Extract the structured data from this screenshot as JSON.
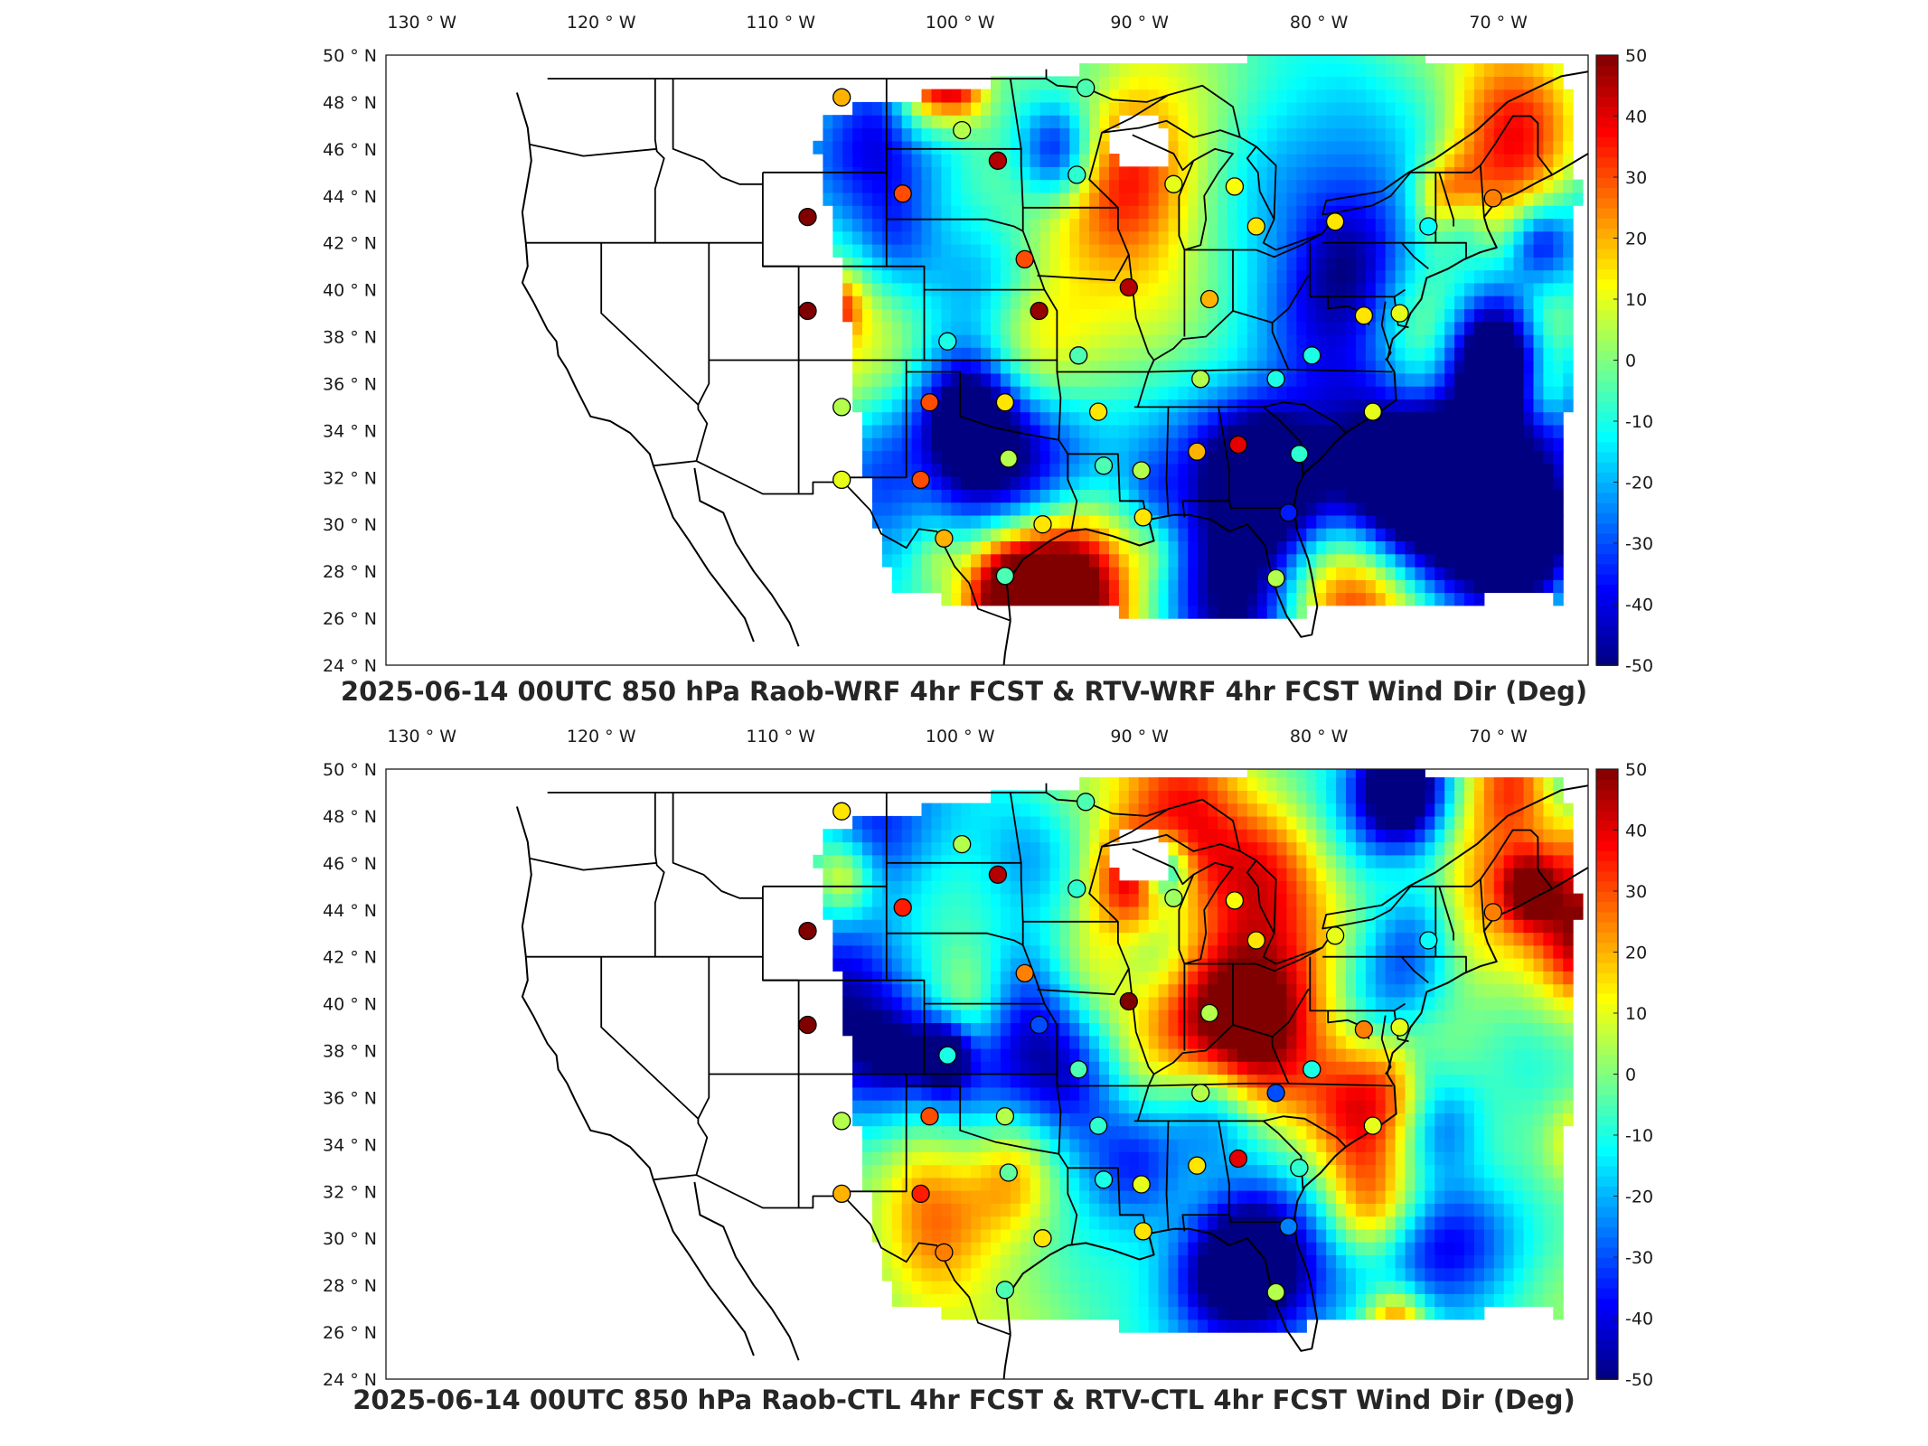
{
  "panels": [
    {
      "title": "2025-06-14 00UTC 850 hPa Raob-WRF 4hr FCST & RTV-WRF 4hr FCST Wind Dir (Deg)",
      "variant": 0
    },
    {
      "title": "2025-06-14 00UTC 850 hPa Raob-CTL 4hr FCST & RTV-CTL 4hr FCST Wind Dir (Deg)",
      "variant": 1
    }
  ],
  "longitude_ticks": [
    {
      "value": -130,
      "label": "130"
    },
    {
      "value": -120,
      "label": "120"
    },
    {
      "value": -110,
      "label": "110"
    },
    {
      "value": -100,
      "label": "100"
    },
    {
      "value": -90,
      "label": "90"
    },
    {
      "value": -80,
      "label": "80"
    },
    {
      "value": -70,
      "label": "70"
    }
  ],
  "longitude_hemisphere": "W",
  "latitude_ticks": [
    {
      "value": 50,
      "label": "50"
    },
    {
      "value": 48,
      "label": "48"
    },
    {
      "value": 46,
      "label": "46"
    },
    {
      "value": 44,
      "label": "44"
    },
    {
      "value": 42,
      "label": "42"
    },
    {
      "value": 40,
      "label": "40"
    },
    {
      "value": 38,
      "label": "38"
    },
    {
      "value": 36,
      "label": "36"
    },
    {
      "value": 34,
      "label": "34"
    },
    {
      "value": 32,
      "label": "32"
    },
    {
      "value": 30,
      "label": "30"
    },
    {
      "value": 28,
      "label": "28"
    },
    {
      "value": 26,
      "label": "26"
    },
    {
      "value": 24,
      "label": "24"
    }
  ],
  "latitude_hemisphere": "N",
  "degree_symbol": "°",
  "colorbar": {
    "min": -50,
    "max": 50,
    "ticks": [
      "50",
      "40",
      "30",
      "20",
      "10",
      "0",
      "-10",
      "-20",
      "-30",
      "-40",
      "-50"
    ],
    "colormap": "jet"
  },
  "map_extent": {
    "lon_min": -132,
    "lon_max": -65,
    "lat_min": 24,
    "lat_max": 50
  },
  "raob_stations": [
    {
      "lon": -106.6,
      "lat": 48.2,
      "v": [
        20,
        15
      ]
    },
    {
      "lon": -99.9,
      "lat": 46.8,
      "v": [
        5,
        5
      ]
    },
    {
      "lon": -97.9,
      "lat": 45.5,
      "v": [
        45,
        45
      ]
    },
    {
      "lon": -103.2,
      "lat": 44.1,
      "v": [
        30,
        35
      ]
    },
    {
      "lon": -108.5,
      "lat": 43.1,
      "v": [
        50,
        50
      ]
    },
    {
      "lon": -108.5,
      "lat": 39.1,
      "v": [
        50,
        50
      ]
    },
    {
      "lon": -93.5,
      "lat": 44.9,
      "v": [
        -8,
        -8
      ]
    },
    {
      "lon": -88.1,
      "lat": 44.5,
      "v": [
        10,
        3
      ]
    },
    {
      "lon": -84.7,
      "lat": 44.4,
      "v": [
        12,
        12
      ]
    },
    {
      "lon": -83.5,
      "lat": 42.7,
      "v": [
        15,
        15
      ]
    },
    {
      "lon": -79.1,
      "lat": 42.9,
      "v": [
        15,
        10
      ]
    },
    {
      "lon": -73.9,
      "lat": 42.7,
      "v": [
        -12,
        -12
      ]
    },
    {
      "lon": -70.3,
      "lat": 43.9,
      "v": [
        25,
        25
      ]
    },
    {
      "lon": -96.4,
      "lat": 41.3,
      "v": [
        30,
        25
      ]
    },
    {
      "lon": -90.6,
      "lat": 40.1,
      "v": [
        45,
        50
      ]
    },
    {
      "lon": -95.6,
      "lat": 39.1,
      "v": [
        48,
        -30
      ]
    },
    {
      "lon": -86.1,
      "lat": 39.6,
      "v": [
        20,
        5
      ]
    },
    {
      "lon": -100.7,
      "lat": 37.8,
      "v": [
        -10,
        -10
      ]
    },
    {
      "lon": -93.4,
      "lat": 37.2,
      "v": [
        -5,
        -5
      ]
    },
    {
      "lon": -86.6,
      "lat": 36.2,
      "v": [
        5,
        5
      ]
    },
    {
      "lon": -82.4,
      "lat": 36.2,
      "v": [
        -10,
        -30
      ]
    },
    {
      "lon": -101.7,
      "lat": 35.2,
      "v": [
        30,
        30
      ]
    },
    {
      "lon": -106.6,
      "lat": 35.0,
      "v": [
        5,
        5
      ]
    },
    {
      "lon": -97.5,
      "lat": 35.2,
      "v": [
        15,
        5
      ]
    },
    {
      "lon": -92.3,
      "lat": 34.8,
      "v": [
        15,
        -8
      ]
    },
    {
      "lon": -97.3,
      "lat": 32.8,
      "v": [
        5,
        -3
      ]
    },
    {
      "lon": -92.0,
      "lat": 32.5,
      "v": [
        -5,
        -10
      ]
    },
    {
      "lon": -89.9,
      "lat": 32.3,
      "v": [
        5,
        10
      ]
    },
    {
      "lon": -86.8,
      "lat": 33.1,
      "v": [
        20,
        15
      ]
    },
    {
      "lon": -84.5,
      "lat": 33.4,
      "v": [
        40,
        40
      ]
    },
    {
      "lon": -106.6,
      "lat": 31.9,
      "v": [
        10,
        20
      ]
    },
    {
      "lon": -102.2,
      "lat": 31.9,
      "v": [
        30,
        35
      ]
    },
    {
      "lon": -100.9,
      "lat": 29.4,
      "v": [
        20,
        25
      ]
    },
    {
      "lon": -95.4,
      "lat": 30.0,
      "v": [
        15,
        15
      ]
    },
    {
      "lon": -89.8,
      "lat": 30.3,
      "v": [
        15,
        15
      ]
    },
    {
      "lon": -81.7,
      "lat": 30.5,
      "v": [
        -35,
        -25
      ]
    },
    {
      "lon": -97.5,
      "lat": 27.8,
      "v": [
        -5,
        -5
      ]
    },
    {
      "lon": -82.4,
      "lat": 27.7,
      "v": [
        5,
        5
      ]
    },
    {
      "lon": -81.1,
      "lat": 33.0,
      "v": [
        -8,
        -8
      ]
    },
    {
      "lon": -77.0,
      "lat": 34.8,
      "v": [
        10,
        10
      ]
    },
    {
      "lon": -77.5,
      "lat": 38.9,
      "v": [
        15,
        25
      ]
    },
    {
      "lon": -75.5,
      "lat": 39.0,
      "v": [
        10,
        10
      ]
    },
    {
      "lon": -80.4,
      "lat": 37.2,
      "v": [
        -10,
        -10
      ]
    },
    {
      "lon": -93.0,
      "lat": 48.6,
      "v": [
        -5,
        -5
      ]
    }
  ]
}
